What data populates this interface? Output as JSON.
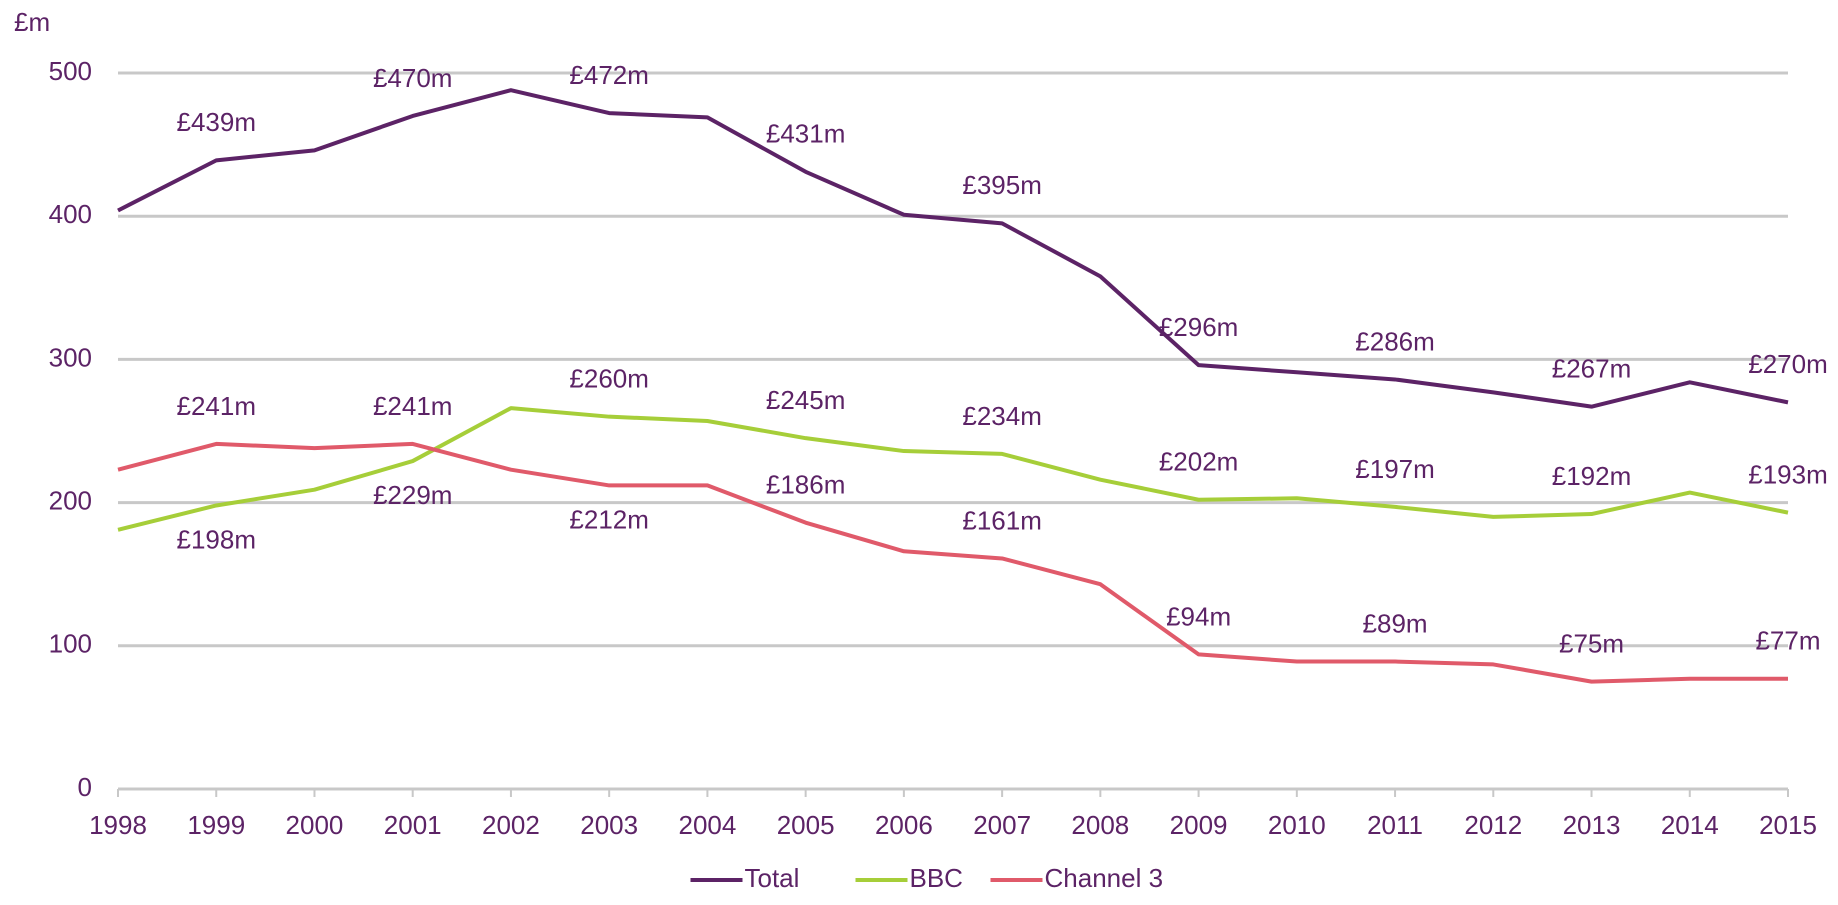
{
  "chart_data": {
    "type": "line",
    "y_label": "£m",
    "x": [
      1998,
      1999,
      2000,
      2001,
      2002,
      2003,
      2004,
      2005,
      2006,
      2007,
      2008,
      2009,
      2010,
      2011,
      2012,
      2013,
      2014,
      2015
    ],
    "xlim": [
      1998,
      2015
    ],
    "xticks": [
      1998,
      1999,
      2000,
      2001,
      2002,
      2003,
      2004,
      2005,
      2006,
      2007,
      2008,
      2009,
      2010,
      2011,
      2012,
      2013,
      2014,
      2015
    ],
    "ylim": [
      0,
      500
    ],
    "yticks": [
      0,
      100,
      200,
      300,
      400,
      500
    ],
    "grid": true,
    "legend": "bottom",
    "series": [
      {
        "name": "Total",
        "color": "#5c2366",
        "values": [
          404,
          439,
          446,
          470,
          488,
          472,
          469,
          431,
          401,
          395,
          358,
          296,
          291,
          286,
          277,
          267,
          284,
          270
        ],
        "value_labels": [
          null,
          "£439m",
          null,
          "£470m",
          null,
          "£472m",
          null,
          "£431m",
          null,
          "£395m",
          null,
          "£296m",
          null,
          "£286m",
          null,
          "£267m",
          null,
          "£270m"
        ]
      },
      {
        "name": "BBC",
        "color": "#a6ce39",
        "values": [
          181,
          198,
          209,
          229,
          266,
          260,
          257,
          245,
          236,
          234,
          216,
          202,
          203,
          197,
          190,
          192,
          207,
          193
        ],
        "value_labels": [
          null,
          "£198m",
          null,
          "£229m",
          null,
          "£260m",
          null,
          "£245m",
          null,
          "£234m",
          null,
          "£202m",
          null,
          "£197m",
          null,
          "£192m",
          null,
          "£193m"
        ]
      },
      {
        "name": "Channel 3",
        "color": "#e05a6a",
        "values": [
          223,
          241,
          238,
          241,
          223,
          212,
          212,
          186,
          166,
          161,
          143,
          94,
          89,
          89,
          87,
          75,
          77,
          77
        ],
        "value_labels": [
          null,
          "£241m",
          null,
          "£241m",
          null,
          "£212m",
          null,
          "£186m",
          null,
          "£161m",
          null,
          "£94m",
          null,
          "£89m",
          null,
          "£75m",
          null,
          "£77m"
        ]
      }
    ]
  }
}
